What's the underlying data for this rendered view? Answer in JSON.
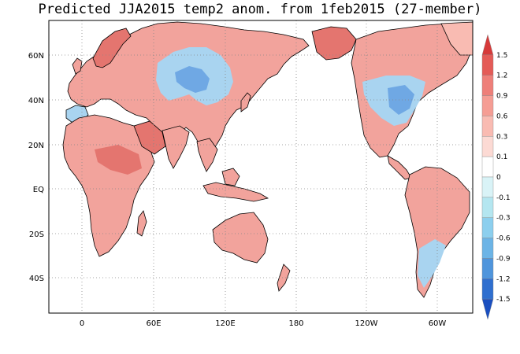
{
  "title": "Predicted JJA2015 temp2 anom. from 1feb2015 (27-member)",
  "lat_labels": [
    "60N",
    "40N",
    "20N",
    "EQ",
    "20S",
    "40S"
  ],
  "lon_labels": [
    "0",
    "60E",
    "120E",
    "180",
    "120W",
    "60W"
  ],
  "colorbar": {
    "labels": [
      "1.5",
      "1.2",
      "0.9",
      "0.6",
      "0.3",
      "0.1",
      "0",
      "-0.1",
      "-0.3",
      "-0.6",
      "-0.9",
      "-1.2",
      "-1.5"
    ],
    "colors": [
      "#d63a3a",
      "#e45b57",
      "#ee7f79",
      "#f59d94",
      "#f9bbb2",
      "#fcdad4",
      "#ffffff",
      "#d9f3f7",
      "#b4e6f0",
      "#8ccfee",
      "#6cb4e6",
      "#4f95dc",
      "#2f6fcf",
      "#1a4fc0"
    ]
  },
  "map": {
    "ocean_color": "#ffffff",
    "warm_color": "#f2a39c",
    "strong_warm_color": "#e4756f",
    "cool_color": "#a9d4f0",
    "strong_cool_color": "#6fa8e4",
    "grid_style": "dotted"
  }
}
